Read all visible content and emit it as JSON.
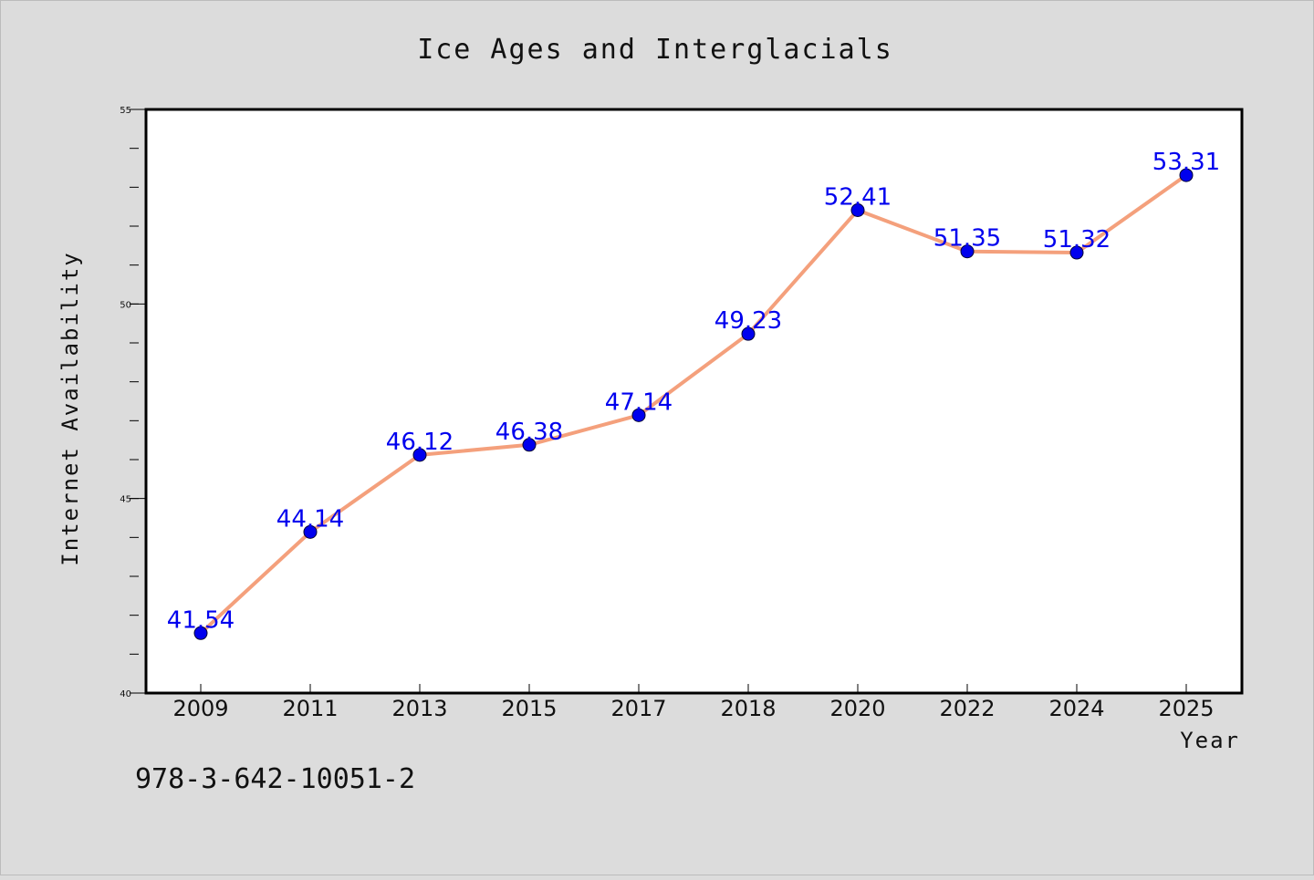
{
  "chart_data": {
    "type": "line",
    "title": "Ice Ages and Interglacials",
    "xlabel": "Year",
    "ylabel": "Internet Availability",
    "categories": [
      "2009",
      "2011",
      "2013",
      "2015",
      "2017",
      "2018",
      "2020",
      "2022",
      "2024",
      "2025"
    ],
    "series": [
      {
        "values": [
          41.54,
          44.14,
          46.12,
          46.38,
          47.14,
          49.23,
          52.41,
          51.35,
          51.32,
          53.31
        ],
        "labels": [
          "41.54",
          "44.14",
          "46.12",
          "46.38",
          "47.14",
          "49.23",
          "52.41",
          "51.35",
          "51.32",
          "53.31"
        ]
      }
    ],
    "ylim": [
      40,
      55
    ],
    "yticks": [
      "40",
      "45",
      "50",
      "55"
    ],
    "grid": false,
    "legend": "none",
    "colors": {
      "line": "#f4a07c",
      "marker": "#0000ee",
      "data_label": "#0000ee",
      "background": "#dcdcdc",
      "plot_background": "#ffffff"
    }
  },
  "footer_text": "978-3-642-10051-2"
}
